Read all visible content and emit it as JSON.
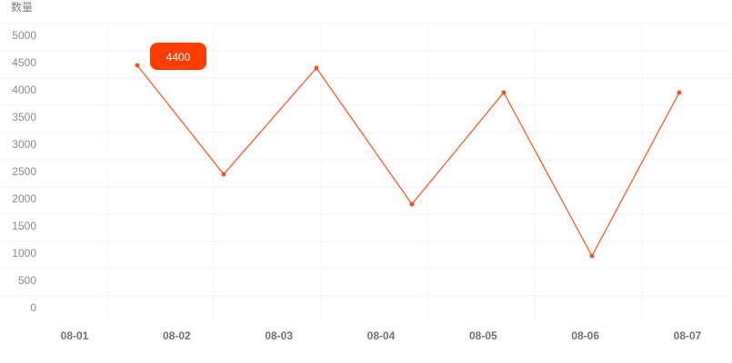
{
  "chart_data": {
    "type": "line",
    "title": "",
    "xlabel": "",
    "ylabel": "数量",
    "categories": [
      "08-01",
      "08-02",
      "08-03",
      "08-04",
      "08-05",
      "08-06",
      "08-07"
    ],
    "series": [
      {
        "values": [
          4450,
          2450,
          4400,
          1900,
          3950,
          950,
          3950
        ],
        "color": "#f4511e"
      }
    ],
    "ylim": [
      0,
      5000
    ],
    "yticks": [
      0,
      500,
      1000,
      1500,
      2000,
      2500,
      3000,
      3500,
      4000,
      4500,
      5000
    ],
    "grid": true,
    "tooltip": {
      "text": "4400",
      "color": "#ff3d00"
    }
  }
}
